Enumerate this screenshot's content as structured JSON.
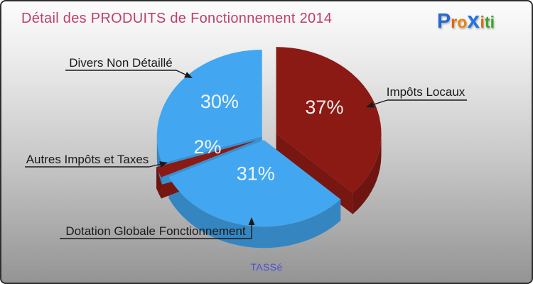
{
  "title": "Détail des PRODUITS de Fonctionnement 2014",
  "logo": {
    "name": "Proxiti",
    "letters": [
      {
        "ch": "P",
        "color": "#2A68CC"
      },
      {
        "ch": "r",
        "color": "#E2650D"
      },
      {
        "ch": "o",
        "color": "#E8860F"
      },
      {
        "ch": "x",
        "color": "#2573DE"
      },
      {
        "ch": "i",
        "color": "#E2650D"
      },
      {
        "ch": "t",
        "color": "#3BA32A"
      },
      {
        "ch": "i",
        "color": "#3BA32A"
      }
    ]
  },
  "footer_note": "TASSé",
  "theme": {
    "title_color": "#BE3F6E",
    "callout_text_color": "#1A1A1A",
    "percent_label_color": "#FAFAFA",
    "footer_color": "#4A4FD8",
    "background_top": "#FCFCFC",
    "background_bottom": "#949494"
  },
  "chart_data": {
    "type": "pie",
    "title": "Détail des PRODUITS de Fonctionnement 2014",
    "style": "3d-exploded",
    "direction": "clockwise",
    "start_angle_deg": 0,
    "value_unit": "%",
    "labels_show": "percent",
    "legend_position": "callouts",
    "slices": [
      {
        "label": "Impôts Locaux",
        "value": 37,
        "color": "#8B1A15",
        "exploded": true
      },
      {
        "label": "Dotation Globale Fonctionnement",
        "value": 31,
        "color": "#42A7F0",
        "exploded": false
      },
      {
        "label": "Autres Impôts et Taxes",
        "value": 2,
        "color": "#8B1A15",
        "exploded": true
      },
      {
        "label": "Divers Non Détaillé",
        "value": 30,
        "color": "#42A7F0",
        "exploded": false
      }
    ]
  }
}
